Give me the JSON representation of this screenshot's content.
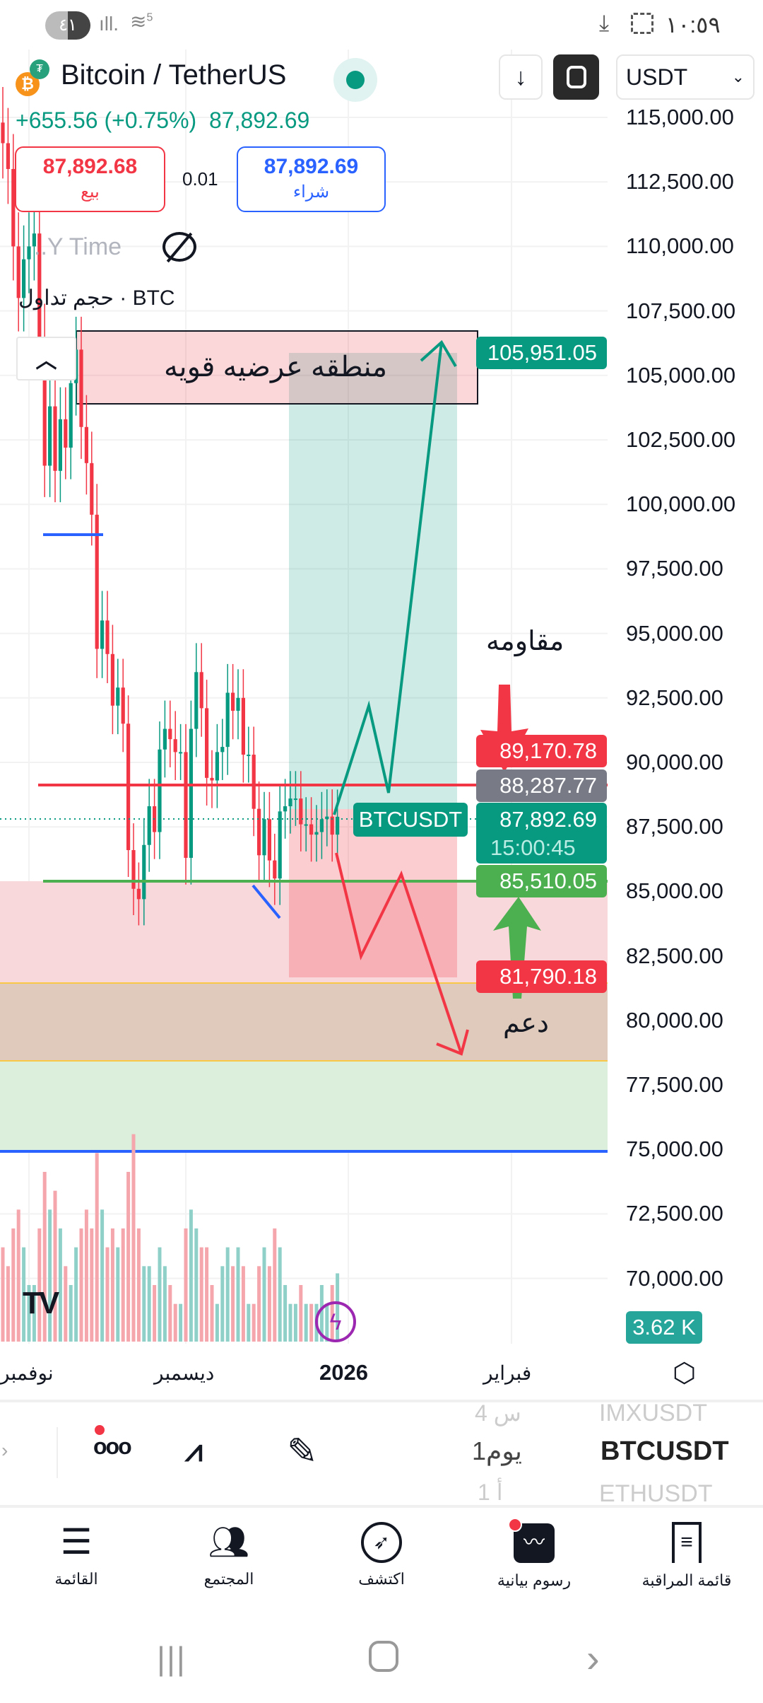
{
  "status_bar": {
    "battery": "٤١",
    "signal": "signal-icon",
    "wifi_badge": "5",
    "time": "١٠:٥٩"
  },
  "header": {
    "title": "Bitcoin / TetherUS",
    "change": "+655.56 (+0.75%)",
    "last_price": "87,892.69",
    "currency": "USDT",
    "status_color": "#089981"
  },
  "trade": {
    "sell_price": "87,892.68",
    "sell_label": "بيع",
    "spread": "0.01",
    "buy_price": "87,892.69",
    "buy_label": "شراء"
  },
  "legend": {
    "time_label": "..Y Time",
    "volume_label": "حجم تداول · BTC"
  },
  "drawings": {
    "zone_label": "منطقه عرضيه قويه",
    "resistance_label": "مقاومه",
    "support_label": "دعم",
    "symbol_tag": "BTCUSDT"
  },
  "price_axis": {
    "ticks": [
      "115,000.00",
      "112,500.00",
      "110,000.00",
      "107,500.00",
      "105,000.00",
      "102,500.00",
      "100,000.00",
      "97,500.00",
      "95,000.00",
      "92,500.00",
      "90,000.00",
      "87,500.00",
      "85,000.00",
      "82,500.00",
      "80,000.00",
      "77,500.00",
      "75,000.00",
      "72,500.00",
      "70,000.00"
    ],
    "target_label": "105,951.05",
    "resistance_price": "89,170.78",
    "marker_price": "88,287.77",
    "current_price": "87,892.69",
    "countdown": "15:00:45",
    "support_price": "85,510.05",
    "stop_price": "81,790.18",
    "volume_label": "3.62 K"
  },
  "time_axis": [
    "نوفمبر",
    "ديسمبر",
    "2026",
    "فبراير"
  ],
  "toolbar": {
    "symbols": [
      "IMXUSDT",
      "BTCUSDT",
      "ETHUSDT"
    ],
    "intervals": [
      "4 س",
      "1يوم",
      "1 أ"
    ]
  },
  "bottom_nav": [
    {
      "label": "القائمة",
      "icon": "menu-icon"
    },
    {
      "label": "المجتمع",
      "icon": "community-icon"
    },
    {
      "label": "اكتشف",
      "icon": "compass-icon"
    },
    {
      "label": "رسوم بيانية",
      "icon": "chart-icon"
    },
    {
      "label": "قائمة المراقبة",
      "icon": "watchlist-icon"
    }
  ],
  "colors": {
    "up": "#089981",
    "down": "#f23645",
    "resistance": "#f23645",
    "support": "#4caf50",
    "accent": "#2962ff"
  },
  "chart_data": {
    "type": "candlestick",
    "interval": "1D",
    "symbol": "BTCUSDT",
    "closes": [
      114000,
      113000,
      110000,
      108000,
      109500,
      110000,
      110500,
      106500,
      101500,
      103800,
      101300,
      103300,
      102200,
      104700,
      106000,
      103000,
      101600,
      99600,
      94400,
      95500,
      94200,
      92200,
      92900,
      91500,
      86600,
      85100,
      84700,
      86800,
      88300,
      87300,
      90500,
      91300,
      90900,
      90400,
      90400,
      86300,
      91300,
      93500,
      92100,
      89400,
      89300,
      90400,
      90600,
      92700,
      92000,
      92500,
      90300,
      90300,
      88200,
      86400,
      87800,
      86200,
      85500,
      88100,
      88300,
      88600,
      88600,
      87600,
      87600,
      87200,
      87300,
      87800,
      87900,
      87200,
      87892.69
    ],
    "volumes_k": [
      5,
      4,
      6,
      7,
      5,
      3,
      3,
      6,
      9,
      7,
      8,
      6,
      4,
      3,
      5,
      6,
      7,
      6,
      10,
      7,
      5,
      6,
      5,
      6,
      9,
      11,
      6,
      4,
      4,
      3,
      5,
      4,
      3,
      2,
      2,
      6,
      7,
      6,
      5,
      5,
      3,
      2,
      4,
      5,
      4,
      5,
      4,
      2,
      2,
      4,
      5,
      4,
      6,
      5,
      3,
      2,
      2,
      3,
      2,
      2,
      2,
      3,
      2,
      3,
      3.62
    ],
    "ylim": [
      68750,
      117500
    ]
  }
}
